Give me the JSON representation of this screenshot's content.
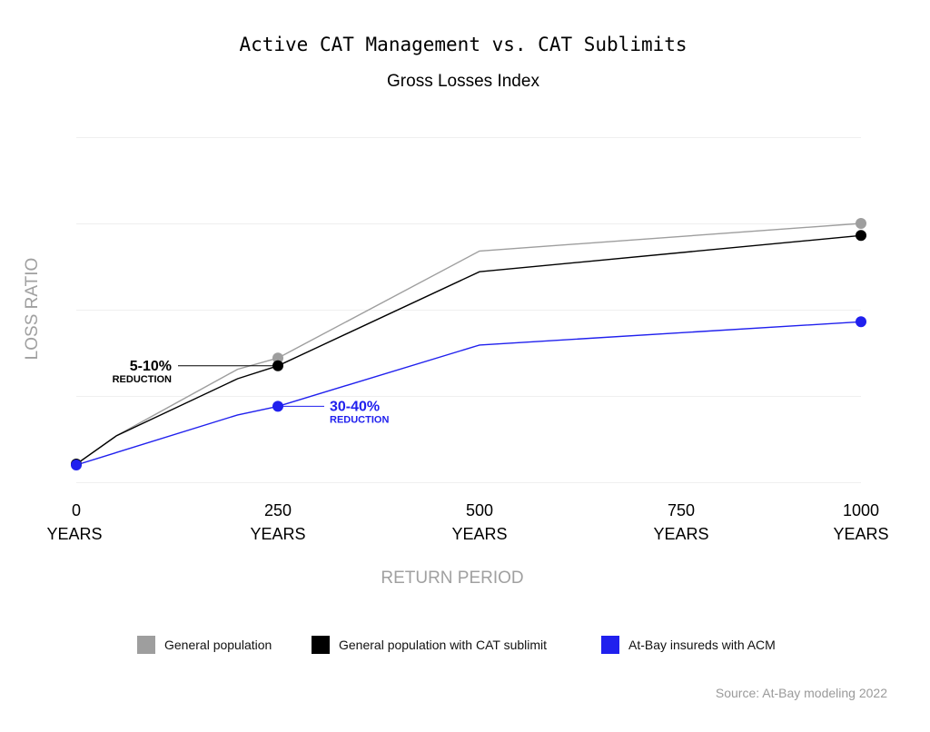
{
  "chart_data": {
    "type": "line",
    "title": "Active CAT Management vs. CAT Sublimits",
    "subtitle": "Gross Losses Index",
    "xlabel": "RETURN PERIOD",
    "ylabel": "LOSS RATIO",
    "x_ticks": [
      {
        "value": 0,
        "label": "0",
        "unit": "YEARS"
      },
      {
        "value": 250,
        "label": "250",
        "unit": "YEARS"
      },
      {
        "value": 500,
        "label": "500",
        "unit": "YEARS"
      },
      {
        "value": 750,
        "label": "750",
        "unit": "YEARS"
      },
      {
        "value": 1000,
        "label": "1000",
        "unit": "YEARS"
      }
    ],
    "xlim": [
      0,
      1000
    ],
    "ylim": [
      0,
      4
    ],
    "y_tick_labels_shown": false,
    "grid": "horizontal",
    "legend_position": "bottom",
    "series": [
      {
        "name": "General population",
        "color": "#9e9e9e",
        "x": [
          0,
          50,
          200,
          250,
          500,
          1000
        ],
        "y": [
          0.21,
          0.54,
          1.31,
          1.44,
          2.68,
          3.0
        ],
        "markers_at": [
          0,
          250,
          1000
        ]
      },
      {
        "name": "General population with CAT sublimit",
        "color": "#000000",
        "x": [
          0,
          50,
          200,
          250,
          500,
          1000
        ],
        "y": [
          0.21,
          0.54,
          1.2,
          1.35,
          2.44,
          2.86
        ],
        "markers_at": [
          0,
          250,
          1000
        ]
      },
      {
        "name": "At-Bay insureds with ACM",
        "color": "#2020ee",
        "x": [
          0,
          200,
          250,
          500,
          1000
        ],
        "y": [
          0.2,
          0.78,
          0.88,
          1.59,
          1.86
        ],
        "markers_at": [
          0,
          250,
          1000
        ]
      }
    ],
    "annotations": [
      {
        "value": "5-10%",
        "text": "REDUCTION",
        "series": 1,
        "x": 250,
        "color": "#000000"
      },
      {
        "value": "30-40%",
        "text": "REDUCTION",
        "series": 2,
        "x": 250,
        "color": "#2020ee"
      }
    ],
    "source": "Source: At-Bay modeling 2022"
  }
}
